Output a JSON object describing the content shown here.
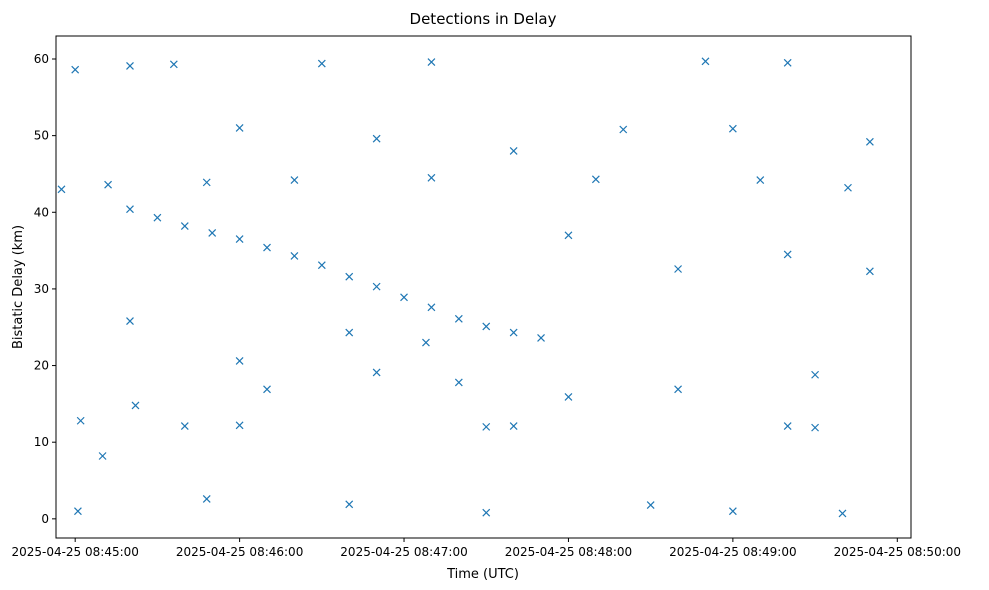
{
  "chart_data": {
    "type": "scatter",
    "title": "Detections in Delay",
    "xlabel": "Time (UTC)",
    "ylabel": "Bistatic Delay (km)",
    "x_unit": "time (UTC)",
    "xlim": [
      "2025-04-25 08:44:53",
      "2025-04-25 08:50:05"
    ],
    "ylim": [
      -2.5,
      63
    ],
    "xticks": [
      "2025-04-25 08:45:00",
      "2025-04-25 08:46:00",
      "2025-04-25 08:47:00",
      "2025-04-25 08:48:00",
      "2025-04-25 08:49:00",
      "2025-04-25 08:50:00"
    ],
    "yticks": [
      0,
      10,
      20,
      30,
      40,
      50,
      60
    ],
    "marker": "x",
    "color": "#1f77b4",
    "grid": false,
    "series": [
      {
        "name": "",
        "description_type": "approximate representative sample of detections",
        "points": [
          [
            "2025-04-25 08:45:20",
            40.4
          ],
          [
            "2025-04-25 08:45:30",
            39.3
          ],
          [
            "2025-04-25 08:45:40",
            38.2
          ],
          [
            "2025-04-25 08:45:50",
            37.3
          ],
          [
            "2025-04-25 08:46:00",
            36.5
          ],
          [
            "2025-04-25 08:46:10",
            35.4
          ],
          [
            "2025-04-25 08:46:20",
            34.3
          ],
          [
            "2025-04-25 08:46:30",
            33.1
          ],
          [
            "2025-04-25 08:46:40",
            31.6
          ],
          [
            "2025-04-25 08:46:50",
            30.3
          ],
          [
            "2025-04-25 08:47:00",
            28.9
          ],
          [
            "2025-04-25 08:47:10",
            27.6
          ],
          [
            "2025-04-25 08:47:20",
            26.1
          ],
          [
            "2025-04-25 08:47:30",
            25.1
          ],
          [
            "2025-04-25 08:47:40",
            24.3
          ],
          [
            "2025-04-25 08:47:50",
            23.6
          ],
          [
            "2025-04-25 08:45:10",
            8.2
          ],
          [
            "2025-04-25 08:45:40",
            12.1
          ],
          [
            "2025-04-25 08:46:00",
            12.2
          ],
          [
            "2025-04-25 08:47:30",
            12.0
          ],
          [
            "2025-04-25 08:47:40",
            12.1
          ],
          [
            "2025-04-25 08:49:20",
            12.1
          ],
          [
            "2025-04-25 08:49:30",
            11.9
          ],
          [
            "2025-04-25 08:45:00",
            58.6
          ],
          [
            "2025-04-25 08:45:20",
            59.1
          ],
          [
            "2025-04-25 08:45:36",
            59.3
          ],
          [
            "2025-04-25 08:46:30",
            59.4
          ],
          [
            "2025-04-25 08:47:10",
            59.6
          ],
          [
            "2025-04-25 08:48:50",
            59.7
          ],
          [
            "2025-04-25 08:49:20",
            59.5
          ],
          [
            "2025-04-25 08:44:55",
            43.0
          ],
          [
            "2025-04-25 08:45:12",
            43.6
          ],
          [
            "2025-04-25 08:45:48",
            43.9
          ],
          [
            "2025-04-25 08:46:20",
            44.2
          ],
          [
            "2025-04-25 08:47:10",
            44.5
          ],
          [
            "2025-04-25 08:48:10",
            44.3
          ],
          [
            "2025-04-25 08:49:10",
            44.2
          ],
          [
            "2025-04-25 08:49:42",
            43.2
          ],
          [
            "2025-04-25 08:45:02",
            12.8
          ],
          [
            "2025-04-25 08:45:22",
            14.8
          ],
          [
            "2025-04-25 08:46:10",
            16.9
          ],
          [
            "2025-04-25 08:46:50",
            19.1
          ],
          [
            "2025-04-25 08:47:20",
            17.8
          ],
          [
            "2025-04-25 08:48:00",
            15.9
          ],
          [
            "2025-04-25 08:48:40",
            16.9
          ],
          [
            "2025-04-25 08:49:30",
            18.8
          ],
          [
            "2025-04-25 08:45:01",
            1.0
          ],
          [
            "2025-04-25 08:45:48",
            2.6
          ],
          [
            "2025-04-25 08:46:40",
            1.9
          ],
          [
            "2025-04-25 08:47:30",
            0.8
          ],
          [
            "2025-04-25 08:48:30",
            1.8
          ],
          [
            "2025-04-25 08:49:00",
            1.0
          ],
          [
            "2025-04-25 08:49:40",
            0.7
          ],
          [
            "2025-04-25 08:45:20",
            25.8
          ],
          [
            "2025-04-25 08:46:00",
            20.6
          ],
          [
            "2025-04-25 08:46:40",
            24.3
          ],
          [
            "2025-04-25 08:47:08",
            23.0
          ],
          [
            "2025-04-25 08:48:00",
            37.0
          ],
          [
            "2025-04-25 08:48:40",
            32.6
          ],
          [
            "2025-04-25 08:49:20",
            34.5
          ],
          [
            "2025-04-25 08:49:50",
            32.3
          ],
          [
            "2025-04-25 08:46:00",
            51.0
          ],
          [
            "2025-04-25 08:46:50",
            49.6
          ],
          [
            "2025-04-25 08:47:40",
            48.0
          ],
          [
            "2025-04-25 08:48:20",
            50.8
          ],
          [
            "2025-04-25 08:49:00",
            50.9
          ],
          [
            "2025-04-25 08:49:50",
            49.2
          ]
        ]
      }
    ]
  }
}
